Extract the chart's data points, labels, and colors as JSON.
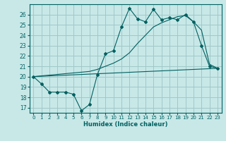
{
  "xlabel": "Humidex (Indice chaleur)",
  "ylabel": "",
  "bg_color": "#c8e8e8",
  "grid_color": "#a0c8c8",
  "line_color": "#006060",
  "x_ticks": [
    0,
    1,
    2,
    3,
    4,
    5,
    6,
    7,
    8,
    9,
    10,
    11,
    12,
    13,
    14,
    15,
    16,
    17,
    18,
    19,
    20,
    21,
    22,
    23
  ],
  "y_ticks": [
    17,
    18,
    19,
    20,
    21,
    22,
    23,
    24,
    25,
    26
  ],
  "xlim": [
    -0.5,
    23.5
  ],
  "ylim": [
    16.5,
    27.0
  ],
  "line1_x": [
    0,
    1,
    2,
    3,
    4,
    5,
    6,
    7,
    8,
    9,
    10,
    11,
    12,
    13,
    14,
    15,
    16,
    17,
    18,
    19,
    20,
    21,
    22,
    23
  ],
  "line1_y": [
    20.0,
    19.3,
    18.5,
    18.5,
    18.5,
    18.3,
    16.7,
    17.3,
    20.2,
    22.2,
    22.5,
    24.8,
    26.6,
    25.6,
    25.3,
    26.5,
    25.5,
    25.7,
    25.5,
    26.0,
    25.3,
    23.0,
    21.0,
    20.8
  ],
  "line2_x": [
    0,
    23
  ],
  "line2_y": [
    20.0,
    20.8
  ],
  "line3_x": [
    0,
    7,
    8,
    9,
    10,
    11,
    12,
    13,
    14,
    15,
    16,
    17,
    18,
    19,
    20,
    21,
    22,
    23
  ],
  "line3_y": [
    20.0,
    20.5,
    20.7,
    21.0,
    21.3,
    21.7,
    22.3,
    23.2,
    24.0,
    24.8,
    25.2,
    25.5,
    25.8,
    25.9,
    25.3,
    24.5,
    21.2,
    20.8
  ]
}
